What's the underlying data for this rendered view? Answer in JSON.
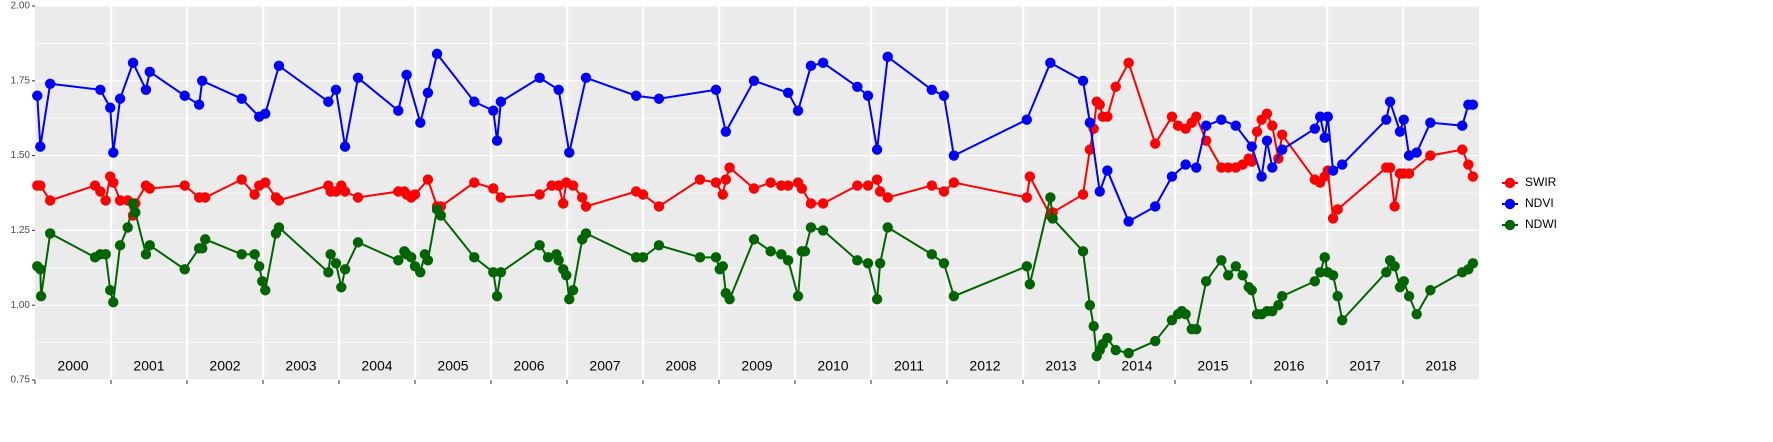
{
  "chart_data": {
    "type": "line",
    "xlim": [
      2000,
      2019
    ],
    "ylim": [
      0.75,
      2
    ],
    "yticks": [
      0.75,
      {
        "value": 1,
        "label": "1.00"
      },
      1.25,
      {
        "value": 1.5,
        "label": "1.50"
      },
      1.75,
      {
        "value": 2,
        "label": "2.00"
      }
    ],
    "xticks": [
      {
        "value": 2000.5,
        "label": "2000"
      },
      {
        "value": 2001.5,
        "label": "2001"
      },
      {
        "value": 2002.5,
        "label": "2002"
      },
      {
        "value": 2003.5,
        "label": "2003"
      },
      {
        "value": 2004.5,
        "label": "2004"
      },
      {
        "value": 2005.5,
        "label": "2005"
      },
      {
        "value": 2006.5,
        "label": "2006"
      },
      {
        "value": 2007.5,
        "label": "2007"
      },
      {
        "value": 2008.5,
        "label": "2008"
      },
      {
        "value": 2009.5,
        "label": "2009"
      },
      {
        "value": 2010.5,
        "label": "2010"
      },
      {
        "value": 2011.5,
        "label": "2011"
      },
      {
        "value": 2012.5,
        "label": "2012"
      },
      {
        "value": 2013.5,
        "label": "2013"
      },
      {
        "value": 2014.5,
        "label": "2014"
      },
      {
        "value": 2015.5,
        "label": "2015"
      },
      {
        "value": 2016.5,
        "label": "2016"
      },
      {
        "value": 2017.5,
        "label": "2017"
      },
      {
        "value": 2018.5,
        "label": "2018"
      }
    ],
    "grid": true,
    "legend": "right",
    "series": [
      {
        "name": "SWIR",
        "color": "#ff0000",
        "x": [
          2000.03,
          2000.07,
          2000.2,
          2000.79,
          2000.86,
          2000.93,
          2000.99,
          2001.03,
          2001.12,
          2001.22,
          2001.29,
          2001.32,
          2001.46,
          2001.51,
          2001.97,
          2002.16,
          2002.24,
          2002.72,
          2002.89,
          2002.95,
          2003.03,
          2003.17,
          2003.21,
          2003.86,
          2003.89,
          2003.96,
          2004.03,
          2004.08,
          2004.25,
          2004.78,
          2004.86,
          2004.89,
          2004.95,
          2005.0,
          2005.17,
          2005.29,
          2005.34,
          2005.78,
          2006.03,
          2006.13,
          2006.64,
          2006.8,
          2006.89,
          2006.95,
          2006.99,
          2007.08,
          2007.2,
          2007.25,
          2007.91,
          2008.0,
          2008.21,
          2008.75,
          2008.96,
          2009.05,
          2009.09,
          2009.14,
          2009.46,
          2009.68,
          2009.82,
          2009.91,
          2010.04,
          2010.09,
          2010.21,
          2010.37,
          2010.82,
          2010.96,
          2011.08,
          2011.12,
          2011.22,
          2011.8,
          2011.96,
          2012.09,
          2013.05,
          2013.09,
          2013.36,
          2013.39,
          2013.79,
          2013.88,
          2013.93,
          2013.97,
          2014.01,
          2014.05,
          2014.11,
          2014.22,
          2014.39,
          2014.74,
          2014.96,
          2015.04,
          2015.14,
          2015.22,
          2015.28,
          2015.41,
          2015.61,
          2015.7,
          2015.8,
          2015.89,
          2015.97,
          2016.01,
          2016.08,
          2016.14,
          2016.21,
          2016.28,
          2016.36,
          2016.41,
          2016.84,
          2016.91,
          2016.97,
          2017.01,
          2017.08,
          2017.14,
          2017.78,
          2017.83,
          2017.89,
          2017.96,
          2018.01,
          2018.08,
          2018.36,
          2018.78,
          2018.86,
          2018.92
        ],
        "values": [
          1.4,
          1.4,
          1.35,
          1.4,
          1.38,
          1.35,
          1.43,
          1.41,
          1.35,
          1.35,
          1.3,
          1.34,
          1.4,
          1.39,
          1.4,
          1.36,
          1.36,
          1.42,
          1.37,
          1.4,
          1.41,
          1.36,
          1.35,
          1.4,
          1.38,
          1.38,
          1.4,
          1.38,
          1.36,
          1.38,
          1.38,
          1.37,
          1.36,
          1.37,
          1.42,
          1.33,
          1.33,
          1.41,
          1.39,
          1.36,
          1.37,
          1.4,
          1.4,
          1.34,
          1.41,
          1.4,
          1.36,
          1.33,
          1.38,
          1.37,
          1.33,
          1.42,
          1.41,
          1.37,
          1.42,
          1.46,
          1.39,
          1.41,
          1.4,
          1.4,
          1.41,
          1.39,
          1.34,
          1.34,
          1.4,
          1.4,
          1.42,
          1.38,
          1.36,
          1.4,
          1.38,
          1.41,
          1.36,
          1.43,
          1.3,
          1.31,
          1.37,
          1.52,
          1.59,
          1.68,
          1.67,
          1.63,
          1.63,
          1.73,
          1.81,
          1.54,
          1.63,
          1.6,
          1.59,
          1.61,
          1.63,
          1.55,
          1.46,
          1.46,
          1.46,
          1.47,
          1.49,
          1.48,
          1.58,
          1.62,
          1.64,
          1.6,
          1.49,
          1.57,
          1.42,
          1.41,
          1.43,
          1.45,
          1.29,
          1.32,
          1.46,
          1.46,
          1.33,
          1.44,
          1.44,
          1.44,
          1.5,
          1.52,
          1.47,
          1.43
        ]
      },
      {
        "name": "NDVI",
        "color": "#0000ff",
        "x": [
          2000.03,
          2000.07,
          2000.2,
          2000.86,
          2000.99,
          2001.03,
          2001.12,
          2001.29,
          2001.46,
          2001.51,
          2001.97,
          2002.16,
          2002.2,
          2002.72,
          2002.95,
          2003.03,
          2003.21,
          2003.86,
          2003.96,
          2004.08,
          2004.25,
          2004.78,
          2004.89,
          2005.07,
          2005.17,
          2005.29,
          2005.78,
          2006.03,
          2006.08,
          2006.13,
          2006.64,
          2006.89,
          2007.03,
          2007.25,
          2007.91,
          2008.21,
          2008.96,
          2009.09,
          2009.46,
          2009.91,
          2010.04,
          2010.21,
          2010.37,
          2010.82,
          2010.96,
          2011.08,
          2011.22,
          2011.8,
          2011.96,
          2012.09,
          2013.05,
          2013.36,
          2013.79,
          2013.88,
          2014.01,
          2014.11,
          2014.39,
          2014.74,
          2014.96,
          2015.14,
          2015.28,
          2015.41,
          2015.61,
          2015.8,
          2016.01,
          2016.14,
          2016.21,
          2016.28,
          2016.41,
          2016.84,
          2016.91,
          2016.97,
          2017.01,
          2017.08,
          2017.2,
          2017.78,
          2017.83,
          2017.96,
          2018.01,
          2018.08,
          2018.18,
          2018.36,
          2018.78,
          2018.86,
          2018.92
        ],
        "values": [
          1.7,
          1.53,
          1.74,
          1.72,
          1.66,
          1.51,
          1.69,
          1.81,
          1.72,
          1.78,
          1.7,
          1.67,
          1.75,
          1.69,
          1.63,
          1.64,
          1.8,
          1.68,
          1.72,
          1.53,
          1.76,
          1.65,
          1.77,
          1.61,
          1.71,
          1.84,
          1.68,
          1.65,
          1.55,
          1.68,
          1.76,
          1.72,
          1.51,
          1.76,
          1.7,
          1.69,
          1.72,
          1.58,
          1.75,
          1.71,
          1.65,
          1.8,
          1.81,
          1.73,
          1.7,
          1.52,
          1.83,
          1.72,
          1.7,
          1.5,
          1.62,
          1.81,
          1.75,
          1.61,
          1.38,
          1.45,
          1.28,
          1.33,
          1.43,
          1.47,
          1.46,
          1.6,
          1.62,
          1.6,
          1.53,
          1.43,
          1.55,
          1.46,
          1.52,
          1.59,
          1.63,
          1.56,
          1.63,
          1.45,
          1.47,
          1.62,
          1.68,
          1.58,
          1.62,
          1.5,
          1.51,
          1.61,
          1.6,
          1.67,
          1.67
        ]
      },
      {
        "name": "NDWI",
        "color": "#006400",
        "x": [
          2000.03,
          2000.07,
          2000.08,
          2000.2,
          2000.79,
          2000.86,
          2000.93,
          2000.99,
          2001.03,
          2001.12,
          2001.22,
          2001.29,
          2001.32,
          2001.46,
          2001.51,
          2001.97,
          2002.16,
          2002.2,
          2002.24,
          2002.72,
          2002.89,
          2002.95,
          2002.99,
          2003.03,
          2003.17,
          2003.21,
          2003.86,
          2003.89,
          2003.96,
          2004.03,
          2004.08,
          2004.25,
          2004.78,
          2004.86,
          2004.89,
          2004.95,
          2005.0,
          2005.07,
          2005.13,
          2005.17,
          2005.29,
          2005.34,
          2005.78,
          2006.03,
          2006.08,
          2006.13,
          2006.64,
          2006.75,
          2006.86,
          2006.89,
          2006.95,
          2006.99,
          2007.03,
          2007.08,
          2007.2,
          2007.25,
          2007.91,
          2008.0,
          2008.21,
          2008.75,
          2008.96,
          2009.01,
          2009.05,
          2009.09,
          2009.14,
          2009.46,
          2009.68,
          2009.82,
          2009.91,
          2010.04,
          2010.09,
          2010.13,
          2010.21,
          2010.37,
          2010.82,
          2010.96,
          2011.08,
          2011.12,
          2011.22,
          2011.8,
          2011.96,
          2012.09,
          2013.05,
          2013.09,
          2013.36,
          2013.39,
          2013.79,
          2013.88,
          2013.93,
          2013.97,
          2014.01,
          2014.05,
          2014.11,
          2014.22,
          2014.39,
          2014.74,
          2014.96,
          2015.04,
          2015.09,
          2015.14,
          2015.22,
          2015.28,
          2015.41,
          2015.61,
          2015.7,
          2015.8,
          2015.89,
          2015.97,
          2016.01,
          2016.08,
          2016.14,
          2016.21,
          2016.28,
          2016.36,
          2016.41,
          2016.84,
          2016.91,
          2016.97,
          2017.01,
          2017.08,
          2017.14,
          2017.2,
          2017.78,
          2017.83,
          2017.89,
          2017.96,
          2018.01,
          2018.08,
          2018.18,
          2018.36,
          2018.78,
          2018.86,
          2018.92
        ],
        "values": [
          1.13,
          1.12,
          1.03,
          1.24,
          1.16,
          1.17,
          1.17,
          1.05,
          1.01,
          1.2,
          1.26,
          1.34,
          1.31,
          1.17,
          1.2,
          1.12,
          1.19,
          1.19,
          1.22,
          1.17,
          1.17,
          1.13,
          1.08,
          1.05,
          1.24,
          1.26,
          1.11,
          1.17,
          1.14,
          1.06,
          1.12,
          1.21,
          1.15,
          1.18,
          1.17,
          1.16,
          1.13,
          1.11,
          1.17,
          1.15,
          1.32,
          1.3,
          1.16,
          1.11,
          1.03,
          1.11,
          1.2,
          1.16,
          1.17,
          1.15,
          1.12,
          1.1,
          1.02,
          1.05,
          1.22,
          1.24,
          1.16,
          1.16,
          1.2,
          1.16,
          1.16,
          1.12,
          1.13,
          1.04,
          1.02,
          1.22,
          1.18,
          1.17,
          1.15,
          1.03,
          1.18,
          1.18,
          1.26,
          1.25,
          1.15,
          1.14,
          1.02,
          1.14,
          1.26,
          1.17,
          1.14,
          1.03,
          1.13,
          1.07,
          1.36,
          1.29,
          1.18,
          1.0,
          0.93,
          0.83,
          0.85,
          0.87,
          0.89,
          0.85,
          0.84,
          0.88,
          0.95,
          0.97,
          0.98,
          0.97,
          0.92,
          0.92,
          1.08,
          1.15,
          1.1,
          1.13,
          1.1,
          1.06,
          1.05,
          0.97,
          0.97,
          0.98,
          0.98,
          1.0,
          1.03,
          1.08,
          1.11,
          1.16,
          1.11,
          1.1,
          1.03,
          0.95,
          1.11,
          1.15,
          1.13,
          1.06,
          1.08,
          1.03,
          0.97,
          1.05,
          1.11,
          1.12,
          1.14
        ]
      }
    ]
  }
}
